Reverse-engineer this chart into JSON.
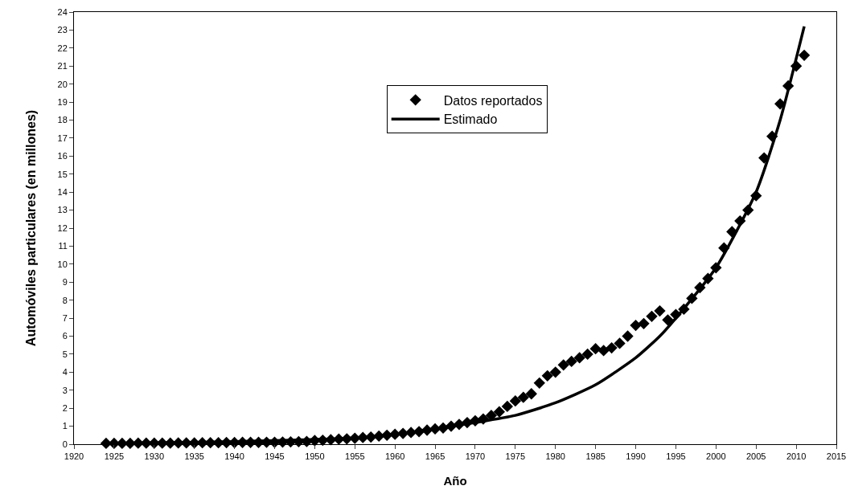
{
  "chart_data": {
    "type": "scatter",
    "xlabel": "Año",
    "ylabel": "Automóviles particulares (en millones)",
    "xlim": [
      1920,
      2015
    ],
    "xticks": [
      1920,
      1925,
      1930,
      1935,
      1940,
      1945,
      1950,
      1955,
      1960,
      1965,
      1970,
      1975,
      1980,
      1985,
      1990,
      1995,
      2000,
      2005,
      2010,
      2015
    ],
    "ylim": [
      0,
      24
    ],
    "yticks": [
      0,
      1,
      2,
      3,
      4,
      5,
      6,
      7,
      8,
      9,
      10,
      11,
      12,
      13,
      14,
      15,
      16,
      17,
      18,
      19,
      20,
      21,
      22,
      23,
      24
    ],
    "grid": false,
    "legend": "top",
    "marker": "diamond",
    "series": [
      {
        "name": "Datos reportados",
        "color": "#000000",
        "x": [
          1924,
          1925,
          1926,
          1927,
          1928,
          1929,
          1930,
          1931,
          1932,
          1933,
          1934,
          1935,
          1936,
          1937,
          1938,
          1939,
          1940,
          1941,
          1942,
          1943,
          1944,
          1945,
          1946,
          1947,
          1948,
          1949,
          1950,
          1951,
          1952,
          1953,
          1954,
          1955,
          1956,
          1957,
          1958,
          1959,
          1960,
          1961,
          1962,
          1963,
          1964,
          1965,
          1966,
          1967,
          1968,
          1969,
          1970,
          1971,
          1972,
          1973,
          1974,
          1975,
          1976,
          1977,
          1978,
          1979,
          1980,
          1981,
          1982,
          1983,
          1984,
          1985,
          1986,
          1987,
          1988,
          1989,
          1990,
          1991,
          1992,
          1993,
          1994,
          1995,
          1996,
          1997,
          1998,
          1999,
          2000,
          2001,
          2002,
          2003,
          2004,
          2005,
          2006,
          2007,
          2008,
          2009,
          2010,
          2011
        ],
        "values": [
          0.05,
          0.05,
          0.05,
          0.05,
          0.06,
          0.06,
          0.06,
          0.06,
          0.06,
          0.07,
          0.07,
          0.07,
          0.08,
          0.08,
          0.08,
          0.09,
          0.09,
          0.1,
          0.1,
          0.1,
          0.11,
          0.11,
          0.12,
          0.13,
          0.14,
          0.15,
          0.2,
          0.22,
          0.25,
          0.28,
          0.3,
          0.33,
          0.37,
          0.4,
          0.45,
          0.5,
          0.55,
          0.6,
          0.65,
          0.7,
          0.78,
          0.85,
          0.9,
          1.0,
          1.1,
          1.2,
          1.3,
          1.4,
          1.6,
          1.8,
          2.1,
          2.4,
          2.6,
          2.8,
          3.4,
          3.8,
          4.0,
          4.4,
          4.6,
          4.8,
          5.0,
          5.3,
          5.2,
          5.35,
          5.6,
          6.0,
          6.6,
          6.7,
          7.1,
          7.4,
          6.9,
          7.2,
          7.5,
          8.1,
          8.7,
          9.2,
          9.8,
          10.9,
          11.8,
          12.4,
          13.0,
          13.8,
          15.9,
          17.1,
          18.9,
          19.9,
          21.0,
          21.6
        ]
      },
      {
        "name": "Estimado",
        "type": "line",
        "marker": "none",
        "line_style": "solid",
        "color": "#000000",
        "x": [
          1924,
          1935,
          1945,
          1955,
          1960,
          1965,
          1970,
          1975,
          1980,
          1985,
          1990,
          1993,
          1995,
          2000,
          2005,
          2008,
          2011
        ],
        "values": [
          0.05,
          0.1,
          0.2,
          0.35,
          0.55,
          0.85,
          1.2,
          1.6,
          2.3,
          3.3,
          4.8,
          6.0,
          7.0,
          9.8,
          14.0,
          18.0,
          23.2
        ]
      }
    ]
  }
}
